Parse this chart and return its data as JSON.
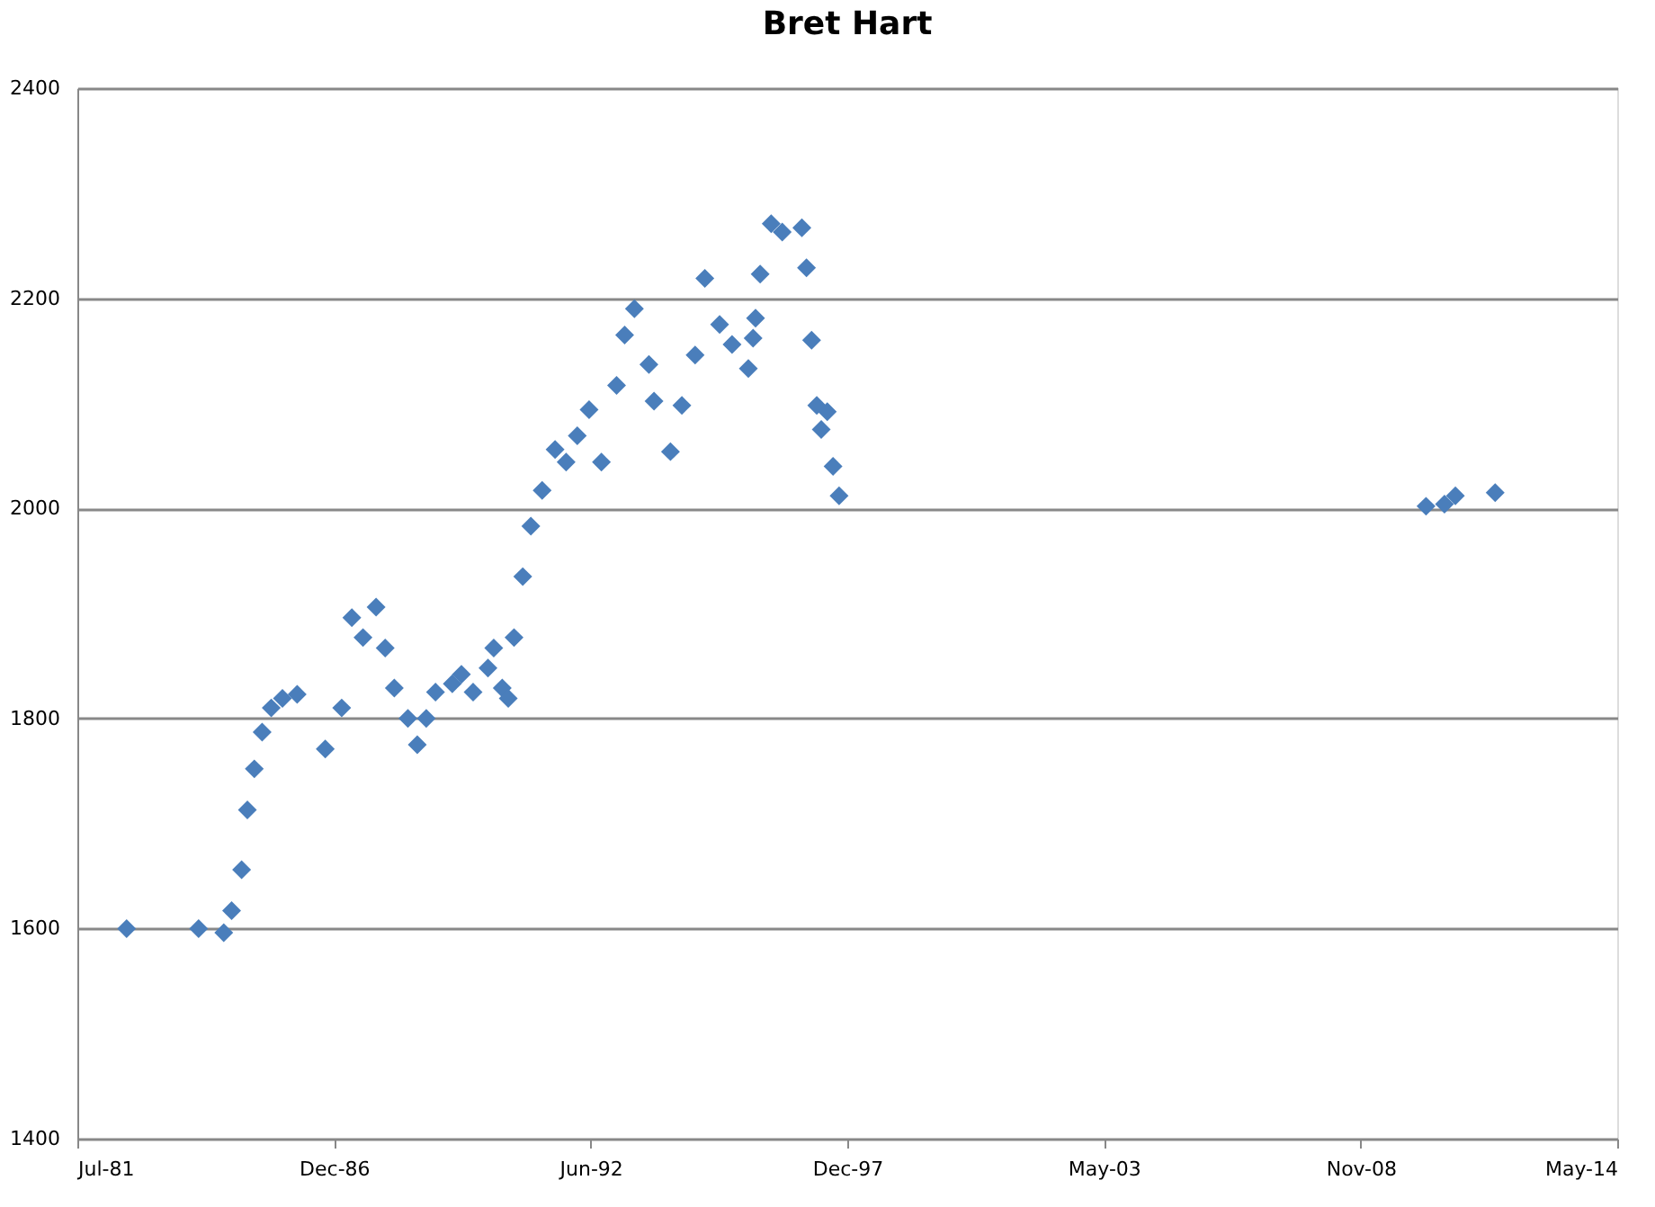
{
  "chart_data": {
    "type": "scatter",
    "title": "Bret Hart",
    "marker": "diamond",
    "grid": "y",
    "x": [
      "1982-07-20",
      "1984-02-01",
      "1984-08-15",
      "1984-10-15",
      "1985-01-01",
      "1985-02-15",
      "1985-04-10",
      "1985-06-10",
      "1985-08-20",
      "1985-11-15",
      "1986-03-10",
      "1986-10-15",
      "1987-02-20",
      "1987-05-10",
      "1987-08-05",
      "1987-11-15",
      "1988-01-25",
      "1988-04-05",
      "1988-07-20",
      "1988-10-01",
      "1988-12-10",
      "1989-02-20",
      "1989-07-01",
      "1989-09-10",
      "1989-12-10",
      "1990-04-05",
      "1990-05-20",
      "1990-07-25",
      "1990-09-10",
      "1990-10-25",
      "1991-01-01",
      "1991-03-05",
      "1991-06-01",
      "1991-09-10",
      "1991-12-05",
      "1992-03-01",
      "1992-06-01",
      "1992-09-05",
      "1993-01-01",
      "1993-03-05",
      "1993-05-20",
      "1993-09-10",
      "1993-10-20",
      "1994-02-25",
      "1994-05-25",
      "1994-09-05",
      "1994-11-20",
      "1995-03-15",
      "1995-06-20",
      "1995-10-25",
      "1995-12-01",
      "1995-12-20",
      "1996-01-25",
      "1996-04-20",
      "1996-07-15",
      "1996-12-15",
      "1997-01-20",
      "1997-03-01",
      "1997-04-10",
      "1997-05-15",
      "1997-07-01",
      "1997-08-15",
      "1997-10-01",
      "2010-04-10",
      "2010-09-01",
      "2010-11-25",
      "2011-10-01"
    ],
    "values": [
      1600,
      1600,
      1596,
      1617,
      1656,
      1713,
      1752,
      1787,
      1810,
      1819,
      1823,
      1771,
      1810,
      1896,
      1877,
      1906,
      1867,
      1829,
      1800,
      1775,
      1800,
      1825,
      1833,
      1842,
      1825,
      1848,
      1867,
      1829,
      1819,
      1877,
      1935,
      1983,
      2017,
      2056,
      2044,
      2069,
      2094,
      2044,
      2117,
      2165,
      2190,
      2137,
      2102,
      2054,
      2098,
      2146,
      2219,
      2175,
      2156,
      2133,
      2162,
      2181,
      2223,
      2271,
      2263,
      2267,
      2229,
      2160,
      2098,
      2075,
      2092,
      2040,
      2012,
      2002,
      2004,
      2012,
      2015
    ],
    "color": "#4a7ebb",
    "xlim": [
      "1981-07-01",
      "2014-05-09"
    ],
    "xticks": [
      {
        "value": "1981-07-01",
        "label": "Jul-81"
      },
      {
        "value": "1986-12-22",
        "label": "Dec-86"
      },
      {
        "value": "1992-06-13",
        "label": "Jun-92"
      },
      {
        "value": "1997-12-04",
        "label": "Dec-97"
      },
      {
        "value": "2003-05-27",
        "label": "May-03"
      },
      {
        "value": "2008-11-17",
        "label": "Nov-08"
      },
      {
        "value": "2014-05-09",
        "label": "May-14"
      }
    ],
    "ylim": [
      1400,
      2400
    ],
    "yticks": [
      1400,
      1600,
      1800,
      2000,
      2200,
      2400
    ]
  }
}
